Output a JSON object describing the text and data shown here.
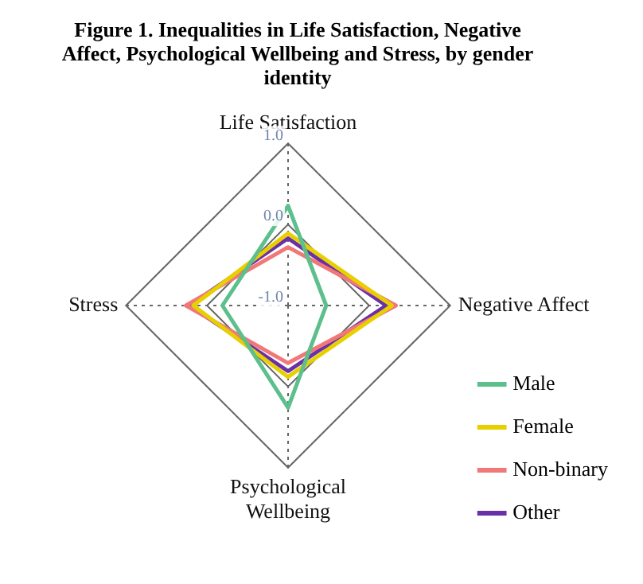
{
  "chart_data": {
    "type": "radar",
    "title": "Figure 1. Inequalities in Life Satisfaction, Negative Affect, Psychological Wellbeing and Stress, by gender identity",
    "categories": [
      "Life Satisfaction",
      "Negative Affect",
      "Psychological Wellbeing",
      "Stress"
    ],
    "series": [
      {
        "name": "Male",
        "color": "#5cbf8c",
        "values": [
          0.23,
          -0.53,
          0.26,
          -0.19
        ]
      },
      {
        "name": "Female",
        "color": "#e8d000",
        "values": [
          -0.11,
          0.28,
          -0.12,
          0.17
        ]
      },
      {
        "name": "Non-binary",
        "color": "#f07878",
        "values": [
          -0.28,
          0.33,
          -0.29,
          0.26
        ]
      },
      {
        "name": "Other",
        "color": "#6a30a8",
        "values": [
          -0.17,
          0.21,
          -0.19,
          0.22
        ]
      }
    ],
    "ylim": [
      -1,
      1
    ],
    "yticks": [
      {
        "value": -1,
        "label": "-1.0"
      },
      {
        "value": 0,
        "label": "0.0"
      },
      {
        "value": 1,
        "label": "1.0"
      }
    ],
    "grid": true,
    "legend": "bottom right",
    "marker": "none",
    "line_style": "solid"
  }
}
